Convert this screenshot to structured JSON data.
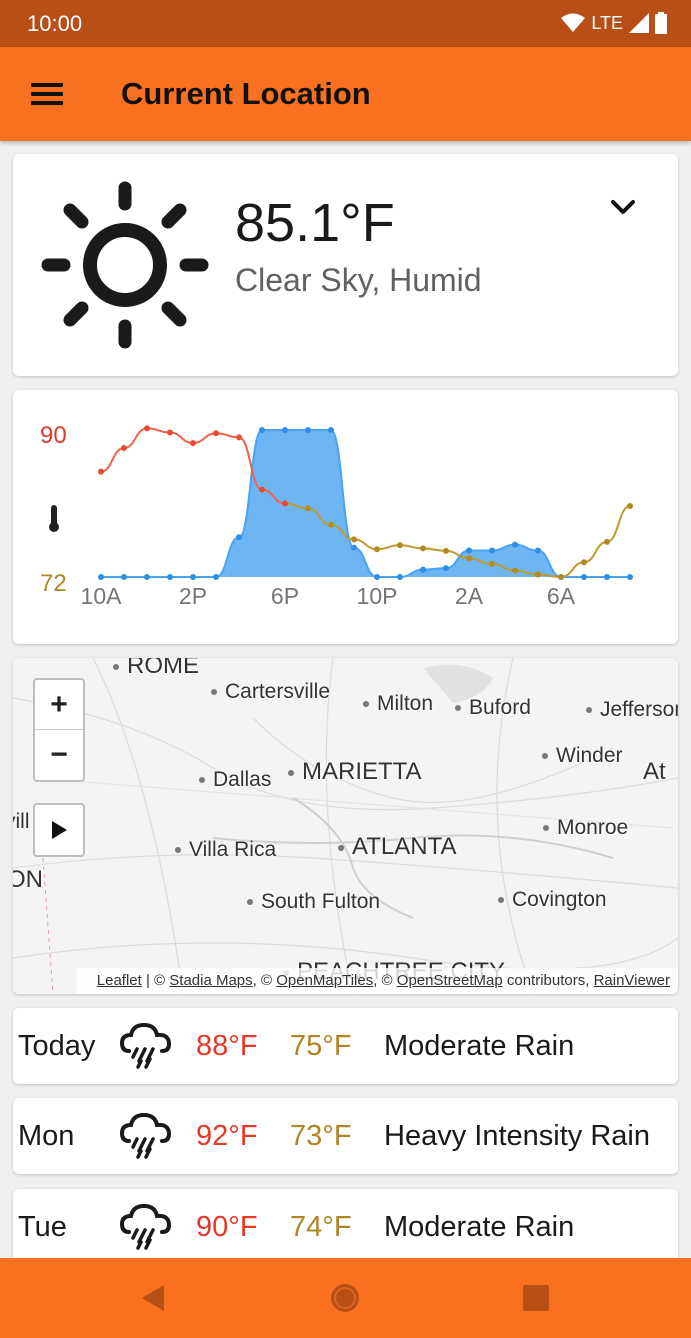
{
  "status_bar": {
    "time": "10:00",
    "network": "LTE",
    "icons": [
      "wifi-icon",
      "signal-icon",
      "battery-icon"
    ]
  },
  "app_bar": {
    "title": "Current Location",
    "menu_icon": "hamburger-menu-icon"
  },
  "current": {
    "temperature": "85.1°F",
    "condition": "Clear Sky, Humid",
    "icon": "sun-icon",
    "expand_icon": "chevron-down-icon"
  },
  "chart_data": {
    "type": "line",
    "y_top_label": "90",
    "y_bottom_label": "72",
    "ylim": [
      72,
      90
    ],
    "x_tick_labels": [
      "10A",
      "2P",
      "6P",
      "10P",
      "2A",
      "6A"
    ],
    "icon": "thermometer-icon",
    "colors": {
      "temperature_hot": "#f0604a",
      "temperature_cool": "#c09a30",
      "precipitation": "#4aa3f0"
    },
    "series": [
      {
        "values": [
          84.9,
          87.8,
          90.2,
          89.7,
          88.4,
          89.6,
          89.1,
          82.7,
          81.0,
          80.4,
          78.4,
          76.6,
          75.4,
          75.9,
          75.5,
          75.2,
          74.3,
          73.6,
          72.8,
          72.3,
          72.0,
          73.8,
          76.3,
          80.7
        ]
      },
      {
        "values": [
          0,
          0,
          0,
          0,
          0,
          0,
          0.27,
          1,
          1,
          1,
          1,
          0.2,
          0,
          0,
          0.05,
          0.06,
          0.18,
          0.18,
          0.22,
          0.18,
          0,
          0,
          0,
          0
        ]
      }
    ]
  },
  "map": {
    "zoom_in_label": "+",
    "zoom_out_label": "−",
    "play_icon": "play-icon",
    "places": [
      {
        "name": "ROME",
        "cls": "big"
      },
      {
        "name": "Cartersville",
        "cls": "mid"
      },
      {
        "name": "Milton",
        "cls": "mid"
      },
      {
        "name": "Buford",
        "cls": "mid"
      },
      {
        "name": "Jefferson",
        "cls": "mid"
      },
      {
        "name": "Winder",
        "cls": "mid"
      },
      {
        "name": "MARIETTA",
        "cls": "big"
      },
      {
        "name": "Dallas",
        "cls": "mid"
      },
      {
        "name": "Monroe",
        "cls": "mid"
      },
      {
        "name": "ATLANTA",
        "cls": "big"
      },
      {
        "name": "Villa Rica",
        "cls": "mid"
      },
      {
        "name": "South Fulton",
        "cls": "mid"
      },
      {
        "name": "Covington",
        "cls": "mid"
      },
      {
        "name": "PEACHTREE CITY",
        "cls": "big"
      },
      {
        "name": "At",
        "cls": "big"
      },
      {
        "name": "vill",
        "cls": "mid"
      },
      {
        "name": "ON",
        "cls": "big"
      }
    ],
    "attribution": {
      "leaflet": "Leaflet",
      "sep1": " | © ",
      "stadia": "Stadia Maps",
      "sep2": ", © ",
      "openmaptiles": "OpenMapTiles",
      "sep3": ", © ",
      "osm": "OpenStreetMap",
      "sep4": " contributors, ",
      "rainviewer": "RainViewer"
    }
  },
  "forecast": [
    {
      "day": "Today",
      "high": "88°F",
      "low": "75°F",
      "condition": "Moderate Rain",
      "icon": "rain-cloud-icon"
    },
    {
      "day": "Mon",
      "high": "92°F",
      "low": "73°F",
      "condition": "Heavy Intensity Rain",
      "icon": "rain-cloud-icon"
    },
    {
      "day": "Tue",
      "high": "90°F",
      "low": "74°F",
      "condition": "Moderate Rain",
      "icon": "rain-cloud-icon"
    }
  ],
  "nav_bar": {
    "icons": [
      "back-icon",
      "home-icon",
      "recents-icon"
    ]
  }
}
